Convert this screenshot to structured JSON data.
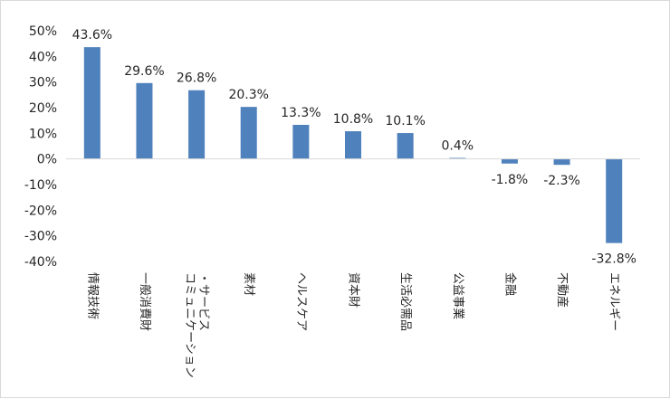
{
  "chart_data": {
    "type": "bar",
    "title": "",
    "xlabel": "",
    "ylabel": "",
    "categories": [
      "情報技術",
      "一般消費財",
      "コミュニケーション・サービス",
      "素材",
      "ヘルスケア",
      "資本財",
      "生活必需品",
      "公益事業",
      "金融",
      "不動産",
      "エネルギー"
    ],
    "category_lines": [
      [
        "情報技術"
      ],
      [
        "一般消費財"
      ],
      [
        "・サービス",
        "コミュニケーション"
      ],
      [
        "素材"
      ],
      [
        "ヘルスケア"
      ],
      [
        "資本財"
      ],
      [
        "生活必需品"
      ],
      [
        "公益事業"
      ],
      [
        "金融"
      ],
      [
        "不動産"
      ],
      [
        "エネルギー"
      ]
    ],
    "values": [
      43.6,
      29.6,
      26.8,
      20.3,
      13.3,
      10.8,
      10.1,
      0.4,
      -1.8,
      -2.3,
      -32.8
    ],
    "data_labels": [
      "43.6%",
      "29.6%",
      "26.8%",
      "20.3%",
      "13.3%",
      "10.8%",
      "10.1%",
      "0.4%",
      "-1.8%",
      "-2.3%",
      "-32.8%"
    ],
    "ylim": [
      -40,
      50
    ],
    "yticks": [
      50,
      40,
      30,
      20,
      10,
      0,
      -10,
      -20,
      -30,
      -40
    ],
    "ytick_labels": [
      "50%",
      "40%",
      "30%",
      "20%",
      "10%",
      "0%",
      "-10%",
      "-20%",
      "-30%",
      "-40%"
    ],
    "grid": false,
    "legend": "none",
    "bar_color": "#4f81bd",
    "axis_color": "#d9d9d9"
  }
}
